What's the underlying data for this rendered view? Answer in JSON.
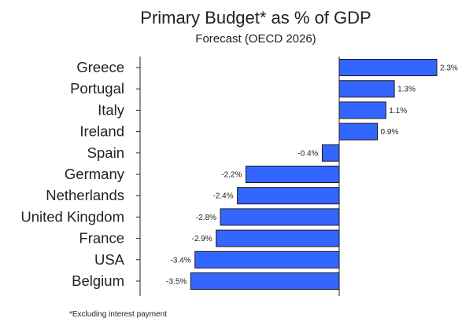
{
  "chart_data": {
    "type": "bar",
    "orientation": "horizontal",
    "title": "Primary Budget* as % of GDP",
    "subtitle": "Forecast (OECD 2026)",
    "categories": [
      "Greece",
      "Portugal",
      "Italy",
      "Ireland",
      "Spain",
      "Germany",
      "Netherlands",
      "United Kingdom",
      "France",
      "USA",
      "Belgium"
    ],
    "values": [
      2.3,
      1.3,
      1.1,
      0.9,
      -0.4,
      -2.2,
      -2.4,
      -2.8,
      -2.9,
      -3.4,
      -3.5
    ],
    "value_labels": [
      "2.3%",
      "1.3%",
      "1.1%",
      "0.9%",
      "-0.4%",
      "-2.2%",
      "-2.4%",
      "-2.8%",
      "-2.9%",
      "-3.4%",
      "-3.5%"
    ],
    "xlim": [
      -4.95,
      2.3
    ],
    "grid": false,
    "bar_color": "#3366ff",
    "footnote": "*Excluding interest payment"
  }
}
